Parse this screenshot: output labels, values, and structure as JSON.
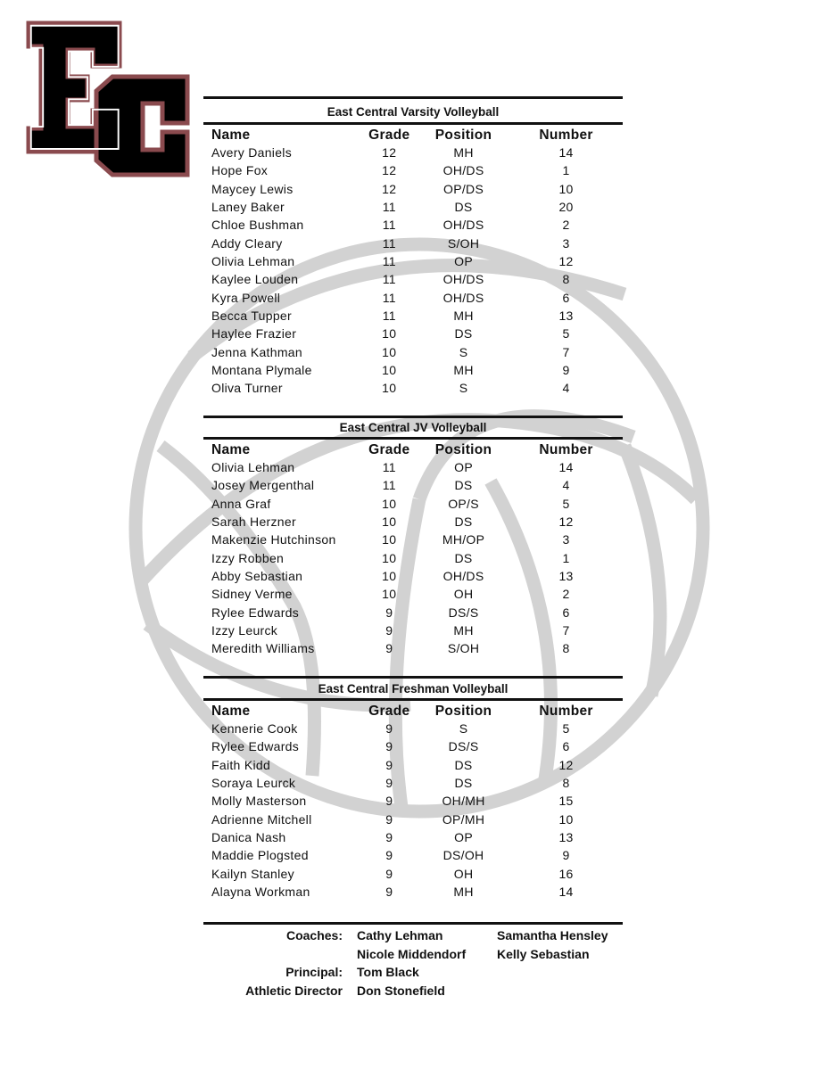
{
  "logo": {
    "text": "EC",
    "fill": "#000000",
    "outline": "#8a4a4e"
  },
  "watermark": {
    "icon": "volleyball-icon",
    "color": "#d2d2d2"
  },
  "columns": {
    "name": "Name",
    "grade": "Grade",
    "position": "Position",
    "number": "Number"
  },
  "varsity": {
    "title": "East Central Varsity Volleyball",
    "rows": [
      [
        "Avery Daniels",
        "12",
        "MH",
        "14"
      ],
      [
        "Hope Fox",
        "12",
        "OH/DS",
        "1"
      ],
      [
        "Maycey Lewis",
        "12",
        "OP/DS",
        "10"
      ],
      [
        "Laney Baker",
        "11",
        "DS",
        "20"
      ],
      [
        "Chloe Bushman",
        "11",
        "OH/DS",
        "2"
      ],
      [
        "Addy Cleary",
        "11",
        "S/OH",
        "3"
      ],
      [
        "Olivia Lehman",
        "11",
        "OP",
        "12"
      ],
      [
        "Kaylee Louden",
        "11",
        "OH/DS",
        "8"
      ],
      [
        "Kyra Powell",
        "11",
        "OH/DS",
        "6"
      ],
      [
        "Becca Tupper",
        "11",
        "MH",
        "13"
      ],
      [
        "Haylee Frazier",
        "10",
        "DS",
        "5"
      ],
      [
        "Jenna Kathman",
        "10",
        "S",
        "7"
      ],
      [
        "Montana Plymale",
        "10",
        "MH",
        "9"
      ],
      [
        "Oliva Turner",
        "10",
        "S",
        "4"
      ]
    ]
  },
  "jv": {
    "title": "East Central JV Volleyball",
    "rows": [
      [
        "Olivia Lehman",
        "11",
        "OP",
        "14"
      ],
      [
        "Josey Mergenthal",
        "11",
        "DS",
        "4"
      ],
      [
        "Anna Graf",
        "10",
        "OP/S",
        "5"
      ],
      [
        "Sarah Herzner",
        "10",
        "DS",
        "12"
      ],
      [
        "Makenzie Hutchinson",
        "10",
        "MH/OP",
        "3"
      ],
      [
        "Izzy Robben",
        "10",
        "DS",
        "1"
      ],
      [
        "Abby Sebastian",
        "10",
        "OH/DS",
        "13"
      ],
      [
        "Sidney Verme",
        "10",
        "OH",
        "2"
      ],
      [
        "Rylee Edwards",
        "9",
        "DS/S",
        "6"
      ],
      [
        "Izzy Leurck",
        "9",
        "MH",
        "7"
      ],
      [
        "Meredith Williams",
        "9",
        "S/OH",
        "8"
      ]
    ]
  },
  "freshman": {
    "title": "East Central Freshman Volleyball",
    "rows": [
      [
        "Kennerie Cook",
        "9",
        "S",
        "5"
      ],
      [
        "Rylee Edwards",
        "9",
        "DS/S",
        "6"
      ],
      [
        "Faith Kidd",
        "9",
        "DS",
        "12"
      ],
      [
        "Soraya Leurck",
        "9",
        "DS",
        "8"
      ],
      [
        "Molly Masterson",
        "9",
        "OH/MH",
        "15"
      ],
      [
        "Adrienne Mitchell",
        "9",
        "OP/MH",
        "10"
      ],
      [
        "Danica Nash",
        "9",
        "OP",
        "13"
      ],
      [
        "Maddie Plogsted",
        "9",
        "DS/OH",
        "9"
      ],
      [
        "Kailyn Stanley",
        "9",
        "OH",
        "16"
      ],
      [
        "Alayna Workman",
        "9",
        "MH",
        "14"
      ]
    ]
  },
  "staff": [
    {
      "label": "Coaches:",
      "col1": "Cathy Lehman",
      "col2": "Samantha Hensley"
    },
    {
      "label": "",
      "col1": "Nicole Middendorf",
      "col2": "Kelly Sebastian"
    },
    {
      "label": "Principal:",
      "col1": "Tom Black",
      "col2": ""
    },
    {
      "label": "Athletic Director",
      "col1": "Don Stonefield",
      "col2": ""
    }
  ]
}
